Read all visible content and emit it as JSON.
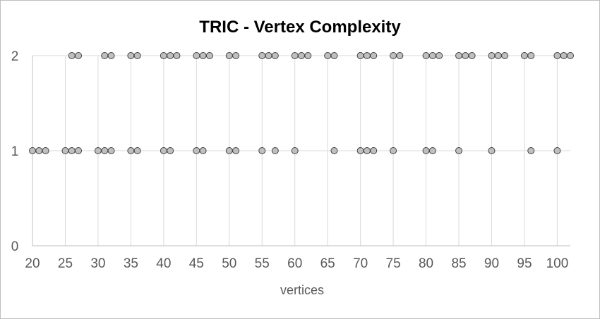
{
  "chart_data": {
    "type": "scatter",
    "title": "TRIC - Vertex Complexity",
    "xlabel": "vertices",
    "ylabel": "",
    "xlim": [
      20,
      102
    ],
    "ylim": [
      0,
      2
    ],
    "x_ticks": [
      "20",
      "25",
      "30",
      "35",
      "40",
      "45",
      "50",
      "55",
      "60",
      "65",
      "70",
      "75",
      "80",
      "85",
      "90",
      "95",
      "100"
    ],
    "y_ticks": [
      "0",
      "1",
      "2"
    ],
    "grid": {
      "vertical": true,
      "horizontal": true
    },
    "legend": "none",
    "marker_color": "#bfbfbf",
    "marker_edge_color": "#404040",
    "series": [
      {
        "x": [
          20,
          21,
          22,
          25,
          26,
          27,
          30,
          31,
          32,
          35,
          36,
          40,
          41,
          45,
          46,
          50,
          51,
          55,
          57,
          60,
          66,
          70,
          71,
          72,
          75,
          80,
          81,
          85,
          90,
          96,
          100
        ],
        "y": [
          1,
          1,
          1,
          1,
          1,
          1,
          1,
          1,
          1,
          1,
          1,
          1,
          1,
          1,
          1,
          1,
          1,
          1,
          1,
          1,
          1,
          1,
          1,
          1,
          1,
          1,
          1,
          1,
          1,
          1,
          1
        ]
      },
      {
        "x": [
          26,
          27,
          31,
          32,
          35,
          36,
          40,
          41,
          42,
          45,
          46,
          47,
          50,
          51,
          55,
          56,
          57,
          60,
          61,
          62,
          65,
          66,
          70,
          71,
          72,
          75,
          76,
          80,
          81,
          82,
          85,
          86,
          87,
          90,
          91,
          92,
          95,
          96,
          100,
          101,
          102
        ],
        "y": [
          2,
          2,
          2,
          2,
          2,
          2,
          2,
          2,
          2,
          2,
          2,
          2,
          2,
          2,
          2,
          2,
          2,
          2,
          2,
          2,
          2,
          2,
          2,
          2,
          2,
          2,
          2,
          2,
          2,
          2,
          2,
          2,
          2,
          2,
          2,
          2,
          2,
          2,
          2,
          2,
          2
        ]
      }
    ]
  }
}
